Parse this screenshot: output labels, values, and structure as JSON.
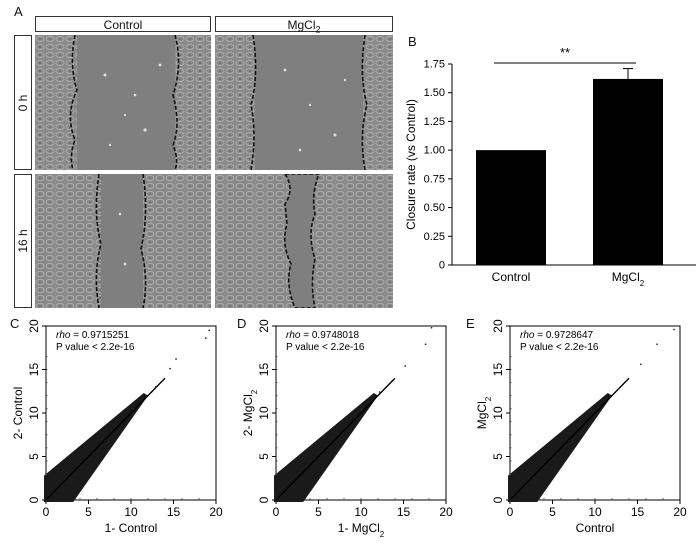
{
  "panel_a": {
    "letter": "A",
    "col_headers": [
      "Control",
      "MgCl2"
    ],
    "col_headers_rich": [
      {
        "base": "Control",
        "sub": ""
      },
      {
        "base": "MgCl",
        "sub": "2"
      }
    ],
    "row_labels": [
      "0 h",
      "16 h"
    ]
  },
  "panel_b": {
    "letter": "B",
    "significance": "**"
  },
  "panel_c": {
    "letter": "C",
    "rho": "rho = 0.9715251",
    "pvalue": "P value < 2.2e-16"
  },
  "panel_d": {
    "letter": "D",
    "rho": "rho = 0.9748018",
    "pvalue": "P value < 2.2e-16"
  },
  "panel_e": {
    "letter": "E",
    "rho": "rho = 0.9728647",
    "pvalue": "P value < 2.2e-16"
  },
  "chart_data": [
    {
      "type": "bar",
      "categories": [
        "Control",
        "MgCl2"
      ],
      "values": [
        1.0,
        1.62
      ],
      "error": [
        0.0,
        0.09
      ],
      "ylabel": "Closure rate (vs Control)",
      "ylim": [
        0,
        1.75
      ],
      "yticks": [
        0,
        0.25,
        0.5,
        0.75,
        1.0,
        1.25,
        1.5,
        1.75
      ],
      "ytick_labels": [
        "0",
        "0.25",
        "0.50",
        "0.75",
        "1.00",
        "1.25",
        "1.50",
        "1.75"
      ],
      "bar_color": "#000000"
    },
    {
      "type": "scatter",
      "xlabel": "1- Control",
      "ylabel": "2- Control",
      "xlim": [
        0,
        20
      ],
      "ylim": [
        0,
        20
      ],
      "ticks": [
        0,
        5,
        10,
        15,
        20
      ],
      "points": [
        [
          0,
          0
        ],
        [
          19.2,
          19.5
        ],
        [
          18.8,
          18.6
        ],
        [
          15.3,
          16.2
        ],
        [
          14.6,
          15.1
        ],
        [
          12.9,
          13.0
        ],
        [
          10.3,
          10.5
        ]
      ]
    },
    {
      "type": "scatter",
      "xlabel": "1- MgCl2",
      "ylabel": "2- MgCl2",
      "xlim": [
        0,
        20
      ],
      "ylim": [
        0,
        20
      ],
      "ticks": [
        0,
        5,
        10,
        15,
        20
      ],
      "points": [
        [
          0,
          0
        ],
        [
          18.3,
          19.8
        ],
        [
          17.6,
          17.9
        ],
        [
          15.2,
          15.4
        ],
        [
          12.2,
          12.4
        ],
        [
          10.1,
          10.4
        ]
      ]
    },
    {
      "type": "scatter",
      "xlabel": "Control",
      "ylabel": "MgCl2",
      "xlim": [
        0,
        20
      ],
      "ylim": [
        0,
        20
      ],
      "ticks": [
        0,
        5,
        10,
        15,
        20
      ],
      "points": [
        [
          0,
          0
        ],
        [
          19.3,
          19.6
        ],
        [
          17.3,
          17.9
        ],
        [
          15.4,
          15.6
        ],
        [
          12.8,
          12.8
        ],
        [
          10.4,
          10.6
        ]
      ]
    }
  ]
}
